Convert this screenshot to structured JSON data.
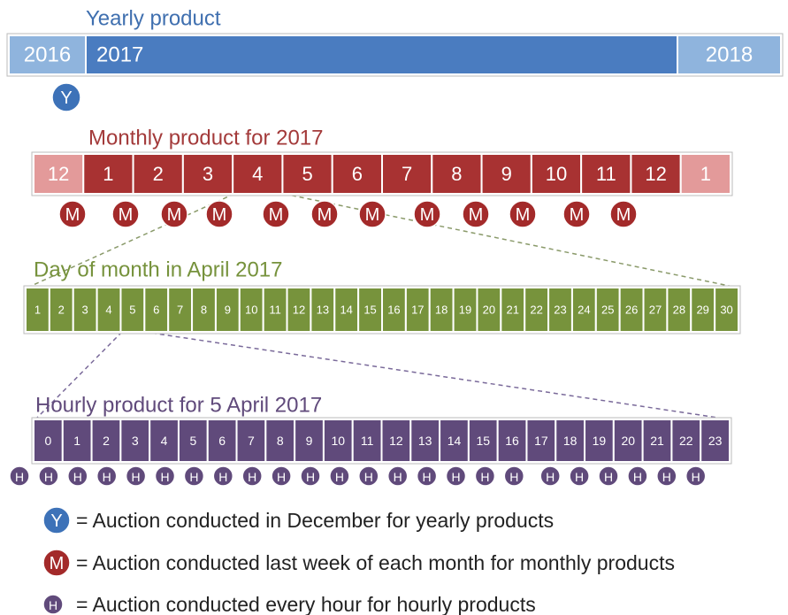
{
  "yearly": {
    "title": "Yearly product",
    "cells": [
      "2016",
      "2017",
      "2018"
    ],
    "markers": [
      "Y"
    ]
  },
  "monthly": {
    "title": "Monthly product for 2017",
    "cells": [
      "12",
      "1",
      "2",
      "3",
      "4",
      "5",
      "6",
      "7",
      "8",
      "9",
      "10",
      "11",
      "12",
      "1"
    ],
    "markers": [
      "M",
      "M",
      "M",
      "M",
      "M",
      "M",
      "M",
      "M",
      "M",
      "M",
      "M",
      "M"
    ]
  },
  "daily": {
    "title": "Day of month in April 2017",
    "cells": [
      "1",
      "2",
      "3",
      "4",
      "5",
      "6",
      "7",
      "8",
      "9",
      "10",
      "11",
      "12",
      "13",
      "14",
      "15",
      "16",
      "17",
      "18",
      "19",
      "20",
      "21",
      "22",
      "23",
      "24",
      "25",
      "26",
      "27",
      "28",
      "29",
      "30"
    ]
  },
  "hourly": {
    "title": "Hourly product for 5 April 2017",
    "cells": [
      "0",
      "1",
      "2",
      "3",
      "4",
      "5",
      "6",
      "7",
      "8",
      "9",
      "10",
      "11",
      "12",
      "13",
      "14",
      "15",
      "16",
      "17",
      "18",
      "19",
      "20",
      "21",
      "22",
      "23"
    ],
    "markers": [
      "H",
      "H",
      "H",
      "H",
      "H",
      "H",
      "H",
      "H",
      "H",
      "H",
      "H",
      "H",
      "H",
      "H",
      "H",
      "H",
      "H",
      "H",
      "H",
      "H",
      "H",
      "H",
      "H",
      "H"
    ]
  },
  "legend": [
    {
      "symbol": "Y",
      "text": "= Auction conducted in December for yearly products"
    },
    {
      "symbol": "M",
      "text": "= Auction conducted last week of each month for monthly products"
    },
    {
      "symbol": "H",
      "text": "= Auction conducted every hour for hourly products"
    }
  ]
}
